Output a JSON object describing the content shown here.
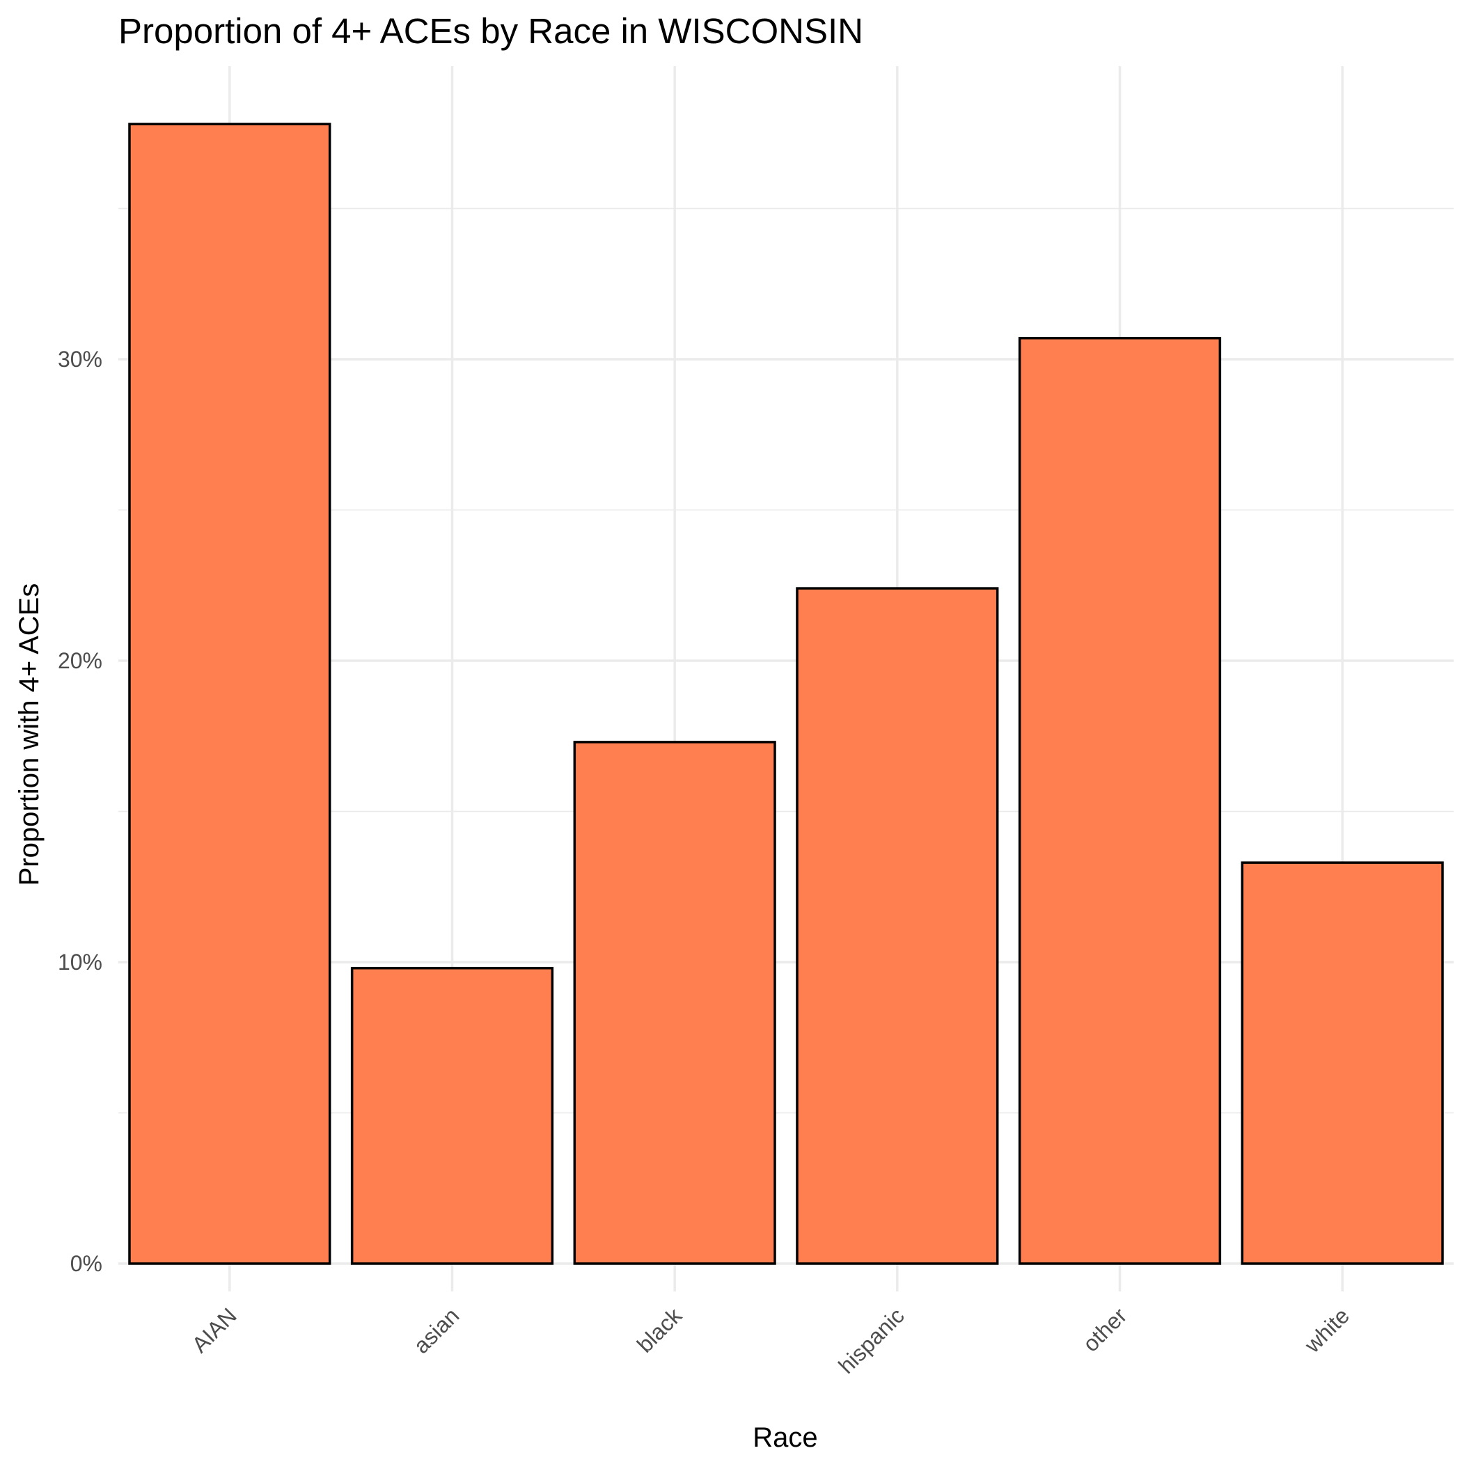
{
  "chart_data": {
    "type": "bar",
    "title": "Proportion of 4+ ACEs by Race in WISCONSIN",
    "xlabel": "Race",
    "ylabel": "Proportion with 4+ ACEs",
    "categories": [
      "AIAN",
      "asian",
      "black",
      "hispanic",
      "other",
      "white"
    ],
    "values": [
      0.378,
      0.098,
      0.173,
      0.224,
      0.307,
      0.133
    ],
    "ylim": [
      -0.0,
      0.395
    ],
    "y_ticks": [
      0,
      0.1,
      0.2,
      0.3
    ],
    "y_tick_labels": [
      "0%",
      "10%",
      "20%",
      "30%"
    ],
    "y_minor_ticks": [
      0.05,
      0.15,
      0.25,
      0.35
    ],
    "grid": true,
    "bar_fill": "#FF7F50",
    "bar_outline": "#000000",
    "legend": "none"
  }
}
